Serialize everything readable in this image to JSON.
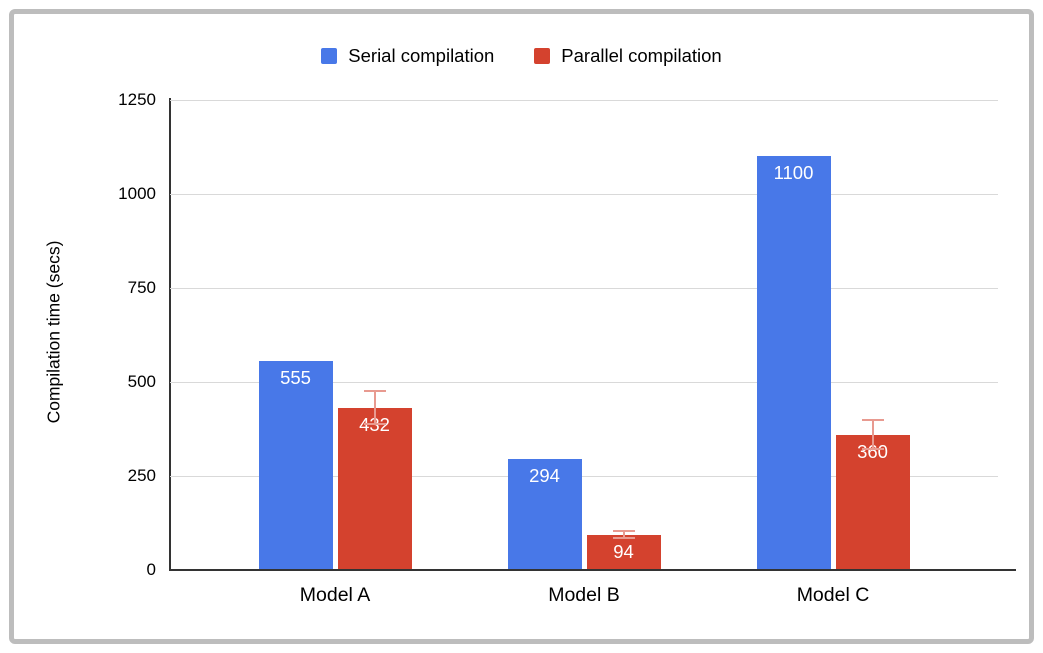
{
  "chart_data": {
    "type": "bar",
    "title": "",
    "categories": [
      "Model A",
      "Model B",
      "Model C"
    ],
    "series": [
      {
        "name": "Serial compilation",
        "color": "#4878e8",
        "values": [
          555,
          294,
          1100
        ]
      },
      {
        "name": "Parallel compilation",
        "color": "#d4422e",
        "values": [
          432,
          94,
          360
        ],
        "error_plus_minus": [
          43,
          10,
          39
        ],
        "error_bar_color": "#e89a90"
      }
    ],
    "xlabel": "",
    "ylabel": "Compilation time (secs)",
    "yticks": [
      0,
      250,
      500,
      750,
      1000,
      1250
    ],
    "ylim": [
      0,
      1250
    ],
    "grid": true,
    "legend_position": "top-center",
    "bar_value_label_color": "#ffffff",
    "frame_border_color": "#bdbdbd",
    "gridline_color": "#d9d9d9",
    "axis_line_color": "#333333"
  }
}
